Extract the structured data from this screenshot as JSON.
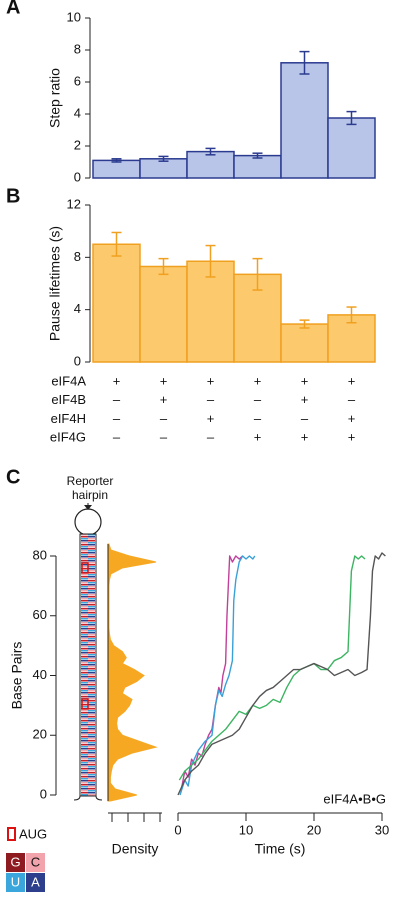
{
  "chart_data": [
    {
      "type": "bar",
      "panel_label": "A",
      "ylabel": "Step ratio",
      "values": [
        1.1,
        1.2,
        1.65,
        1.4,
        7.2,
        3.75
      ],
      "errors": [
        0.1,
        0.15,
        0.2,
        0.15,
        0.7,
        0.4
      ],
      "color": "#b9c5e8",
      "edge_color": "#2b3b8f",
      "ylim": [
        0,
        10
      ],
      "yticks": [
        0,
        2,
        4,
        6,
        8,
        10
      ]
    },
    {
      "type": "bar",
      "panel_label": "B",
      "ylabel": "Pause lifetimes (s)",
      "values": [
        9.0,
        7.3,
        7.7,
        6.7,
        2.9,
        3.6
      ],
      "errors": [
        0.9,
        0.6,
        1.2,
        1.2,
        0.3,
        0.6
      ],
      "color": "#fcca6c",
      "edge_color": "#f0a020",
      "ylim": [
        0,
        12
      ],
      "yticks": [
        0,
        4,
        8,
        12
      ],
      "conditions": [
        {
          "name": "eIF4A",
          "values": [
            "+",
            "+",
            "+",
            "+",
            "+",
            "+"
          ]
        },
        {
          "name": "eIF4B",
          "values": [
            "–",
            "+",
            "–",
            "–",
            "+",
            "–"
          ]
        },
        {
          "name": "eIF4H",
          "values": [
            "–",
            "–",
            "+",
            "–",
            "–",
            "+"
          ]
        },
        {
          "name": "eIF4G",
          "values": [
            "–",
            "–",
            "–",
            "+",
            "+",
            "+"
          ]
        }
      ]
    },
    {
      "type": "line",
      "panel_label": "C",
      "ylabel": "Base Pairs",
      "xlabel": "Time (s)",
      "annotation": "eIF4A•B•G",
      "hairpin_label": [
        "Reporter",
        "hairpin"
      ],
      "xlim": [
        0,
        30
      ],
      "xticks": [
        0,
        10,
        20,
        30
      ],
      "ylim": [
        0,
        80
      ],
      "yticks": [
        0,
        20,
        40,
        60,
        80
      ],
      "series": [
        {
          "color": "#c0409a",
          "x": [
            0.5,
            1,
            1.5,
            2,
            2.5,
            3,
            3.5,
            4,
            4.5,
            5,
            5.5,
            6,
            6.3,
            6.6,
            7,
            7.2,
            7.4,
            7.6,
            8,
            8.5,
            9,
            9.5
          ],
          "values": [
            2,
            8,
            6,
            12,
            10,
            14,
            13,
            17,
            20,
            22,
            30,
            36,
            34,
            40,
            44,
            60,
            70,
            80,
            78,
            80,
            79,
            80
          ]
        },
        {
          "color": "#3aa0d8",
          "x": [
            0.3,
            1,
            1.5,
            2,
            3,
            4,
            5,
            5.5,
            6,
            6.5,
            7,
            7.5,
            8,
            8.2,
            8.5,
            9,
            9.5,
            10,
            10.5,
            11,
            11.3
          ],
          "values": [
            0,
            5,
            3,
            10,
            15,
            18,
            20,
            30,
            35,
            33,
            37,
            40,
            45,
            65,
            72,
            78,
            80,
            79,
            80,
            79,
            80
          ]
        },
        {
          "color": "#3cb462",
          "x": [
            0.2,
            1,
            2,
            3,
            4,
            5,
            6,
            7,
            8,
            9,
            10,
            11,
            12,
            13,
            14,
            15,
            16,
            17,
            18,
            19,
            20,
            21,
            22,
            23,
            24,
            25,
            25.5,
            26,
            26.5,
            27,
            27.5
          ],
          "values": [
            5,
            8,
            10,
            12,
            15,
            18,
            20,
            22,
            25,
            28,
            27,
            30,
            29,
            30,
            32,
            31,
            36,
            40,
            42,
            43,
            44,
            42,
            42,
            45,
            46,
            48,
            75,
            80,
            79,
            80,
            79
          ]
        },
        {
          "color": "#555555",
          "x": [
            0,
            1,
            2,
            3,
            4,
            5,
            6,
            7,
            8,
            9,
            10,
            11,
            12,
            13,
            14,
            15,
            16,
            17,
            18,
            19,
            20,
            21,
            22,
            23,
            24,
            25,
            26,
            27,
            27.8,
            28.3,
            28.6,
            29,
            29.5,
            30,
            30.5
          ],
          "values": [
            0,
            5,
            8,
            10,
            14,
            17,
            18,
            19,
            20,
            22,
            26,
            30,
            33,
            35,
            36,
            38,
            40,
            42,
            42,
            43,
            44,
            43,
            42,
            40,
            41,
            42,
            40,
            41,
            42,
            60,
            75,
            80,
            79,
            81,
            80
          ]
        }
      ],
      "density": {
        "label": "Density",
        "color": "#f7a823",
        "y": [
          -2,
          0,
          2,
          4,
          6,
          8,
          10,
          12,
          14,
          16,
          18,
          20,
          22,
          24,
          26,
          28,
          30,
          32,
          34,
          36,
          38,
          40,
          42,
          44,
          46,
          48,
          50,
          52,
          54,
          56,
          58,
          60,
          62,
          64,
          66,
          68,
          70,
          72,
          74,
          76,
          78,
          80,
          82,
          84
        ],
        "values": [
          0.05,
          0.6,
          0.15,
          0.05,
          0.05,
          0.07,
          0.1,
          0.2,
          0.5,
          1.0,
          0.65,
          0.3,
          0.2,
          0.18,
          0.2,
          0.35,
          0.45,
          0.5,
          0.3,
          0.35,
          0.6,
          0.75,
          0.55,
          0.3,
          0.38,
          0.3,
          0.12,
          0.05,
          0.03,
          0.02,
          0.02,
          0.02,
          0.02,
          0.02,
          0.02,
          0.02,
          0.02,
          0.03,
          0.06,
          0.3,
          1.0,
          0.45,
          0.06,
          0.02
        ]
      },
      "key": {
        "aug": "AUG",
        "bases": [
          {
            "label": "G",
            "color": "#8e1b1f"
          },
          {
            "label": "C",
            "color": "#f2a3ab"
          },
          {
            "label": "U",
            "color": "#3aa6dc"
          },
          {
            "label": "A",
            "color": "#2c3e8c"
          }
        ]
      }
    }
  ]
}
